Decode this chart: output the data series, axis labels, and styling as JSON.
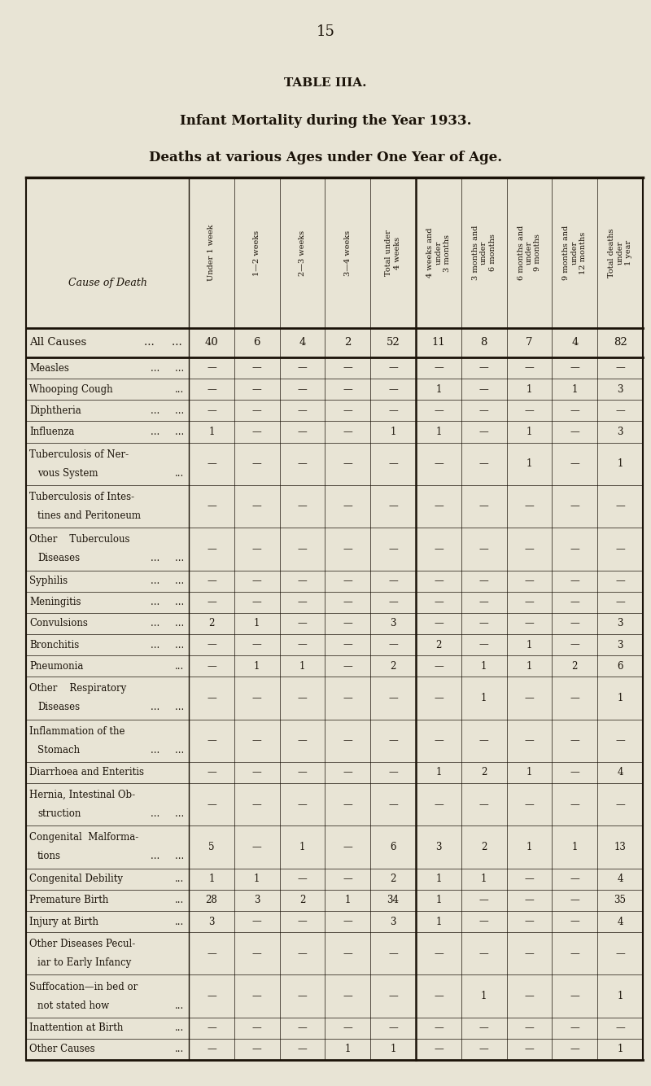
{
  "page_number": "15",
  "table_title": "TABLE IIIA.",
  "subtitle1": "Infant Mortality during the Year 1933.",
  "subtitle2": "Deaths at various Ages under One Year of Age.",
  "col_headers": [
    "Under 1 week",
    "1—2 weeks",
    "2—3 weeks",
    "3—4 weeks",
    "Total under\n4 weeks",
    "4 weeks and\nunder\n3 months",
    "3 months and\nunder\n6 months",
    "6 months and\nunder\n9 months",
    "9 months and\nunder\n12 months",
    "Total deaths\nunder\n1 year"
  ],
  "rows": [
    {
      "label": "All Causes",
      "suffix": "...     ...",
      "values": [
        "40",
        "6",
        "4",
        "2",
        "52",
        "11",
        "8",
        "7",
        "4",
        "82"
      ],
      "bold": true,
      "two_line": false
    },
    {
      "label": "Measles",
      "suffix": "...     ...",
      "values": [
        "—",
        "—",
        "—",
        "—",
        "—",
        "—",
        "—",
        "—",
        "—",
        "—"
      ],
      "bold": false,
      "two_line": false
    },
    {
      "label": "Whooping Cough",
      "suffix": "...",
      "values": [
        "—",
        "—",
        "—",
        "—",
        "—",
        "1",
        "—",
        "1",
        "1",
        "3"
      ],
      "bold": false,
      "two_line": false
    },
    {
      "label": "Diphtheria",
      "suffix": "...     ...",
      "values": [
        "—",
        "—",
        "—",
        "—",
        "—",
        "—",
        "—",
        "—",
        "—",
        "—"
      ],
      "bold": false,
      "two_line": false
    },
    {
      "label": "Influenza",
      "suffix": "...     ...",
      "values": [
        "1",
        "—",
        "—",
        "—",
        "1",
        "1",
        "—",
        "1",
        "—",
        "3"
      ],
      "bold": false,
      "two_line": false
    },
    {
      "label": "Tuberculosis of Ner-",
      "label2": "vous System",
      "suffix": "...",
      "values": [
        "—",
        "—",
        "—",
        "—",
        "—",
        "—",
        "—",
        "1",
        "—",
        "1"
      ],
      "bold": false,
      "two_line": true
    },
    {
      "label": "Tuberculosis of Intes-",
      "label2": "tines and Peritoneum",
      "suffix": "",
      "values": [
        "—",
        "—",
        "—",
        "—",
        "—",
        "—",
        "—",
        "—",
        "—",
        "—"
      ],
      "bold": false,
      "two_line": true
    },
    {
      "label": "Other    Tuberculous",
      "label2": "Diseases",
      "suffix": "...     ...",
      "values": [
        "—",
        "—",
        "—",
        "—",
        "—",
        "—",
        "—",
        "—",
        "—",
        "—"
      ],
      "bold": false,
      "two_line": true
    },
    {
      "label": "Syphilis",
      "suffix": "...     ...",
      "values": [
        "—",
        "—",
        "—",
        "—",
        "—",
        "—",
        "—",
        "—",
        "—",
        "—"
      ],
      "bold": false,
      "two_line": false
    },
    {
      "label": "Meningitis",
      "suffix": "...     ...",
      "values": [
        "—",
        "—",
        "—",
        "—",
        "—",
        "—",
        "—",
        "—",
        "—",
        "—"
      ],
      "bold": false,
      "two_line": false
    },
    {
      "label": "Convulsions",
      "suffix": "...     ...",
      "values": [
        "2",
        "1",
        "—",
        "—",
        "3",
        "—",
        "—",
        "—",
        "—",
        "3"
      ],
      "bold": false,
      "two_line": false
    },
    {
      "label": "Bronchitis",
      "suffix": "...     ...",
      "values": [
        "—",
        "—",
        "—",
        "—",
        "—",
        "2",
        "—",
        "1",
        "—",
        "3"
      ],
      "bold": false,
      "two_line": false
    },
    {
      "label": "Pneumonia",
      "suffix": "...",
      "values": [
        "—",
        "1",
        "1",
        "—",
        "2",
        "—",
        "1",
        "1",
        "2",
        "6"
      ],
      "bold": false,
      "two_line": false
    },
    {
      "label": "Other    Respiratory",
      "label2": "Diseases",
      "suffix": "...     ...",
      "values": [
        "—",
        "—",
        "—",
        "—",
        "—",
        "—",
        "1",
        "—",
        "—",
        "1"
      ],
      "bold": false,
      "two_line": true
    },
    {
      "label": "Inflammation of the",
      "label2": "Stomach",
      "suffix": "...     ...",
      "values": [
        "—",
        "—",
        "—",
        "—",
        "—",
        "—",
        "—",
        "—",
        "—",
        "—"
      ],
      "bold": false,
      "two_line": true
    },
    {
      "label": "Diarrhoea and Enteritis",
      "suffix": "",
      "values": [
        "—",
        "—",
        "—",
        "—",
        "—",
        "1",
        "2",
        "1",
        "—",
        "4"
      ],
      "bold": false,
      "two_line": false
    },
    {
      "label": "Hernia, Intestinal Ob-",
      "label2": "struction",
      "suffix": "...     ...",
      "values": [
        "—",
        "—",
        "—",
        "—",
        "—",
        "—",
        "—",
        "—",
        "—",
        "—"
      ],
      "bold": false,
      "two_line": true
    },
    {
      "label": "Congenital  Malforma-",
      "label2": "tions",
      "suffix": "...     ...",
      "values": [
        "5",
        "—",
        "1",
        "—",
        "6",
        "3",
        "2",
        "1",
        "1",
        "13"
      ],
      "bold": false,
      "two_line": true
    },
    {
      "label": "Congenital Debility",
      "suffix": "...",
      "values": [
        "1",
        "1",
        "—",
        "—",
        "2",
        "1",
        "1",
        "—",
        "—",
        "4"
      ],
      "bold": false,
      "two_line": false
    },
    {
      "label": "Premature Birth",
      "suffix": "...",
      "values": [
        "28",
        "3",
        "2",
        "1",
        "34",
        "1",
        "—",
        "—",
        "—",
        "35"
      ],
      "bold": false,
      "two_line": false
    },
    {
      "label": "Injury at Birth",
      "suffix": "...",
      "values": [
        "3",
        "—",
        "—",
        "—",
        "3",
        "1",
        "—",
        "—",
        "—",
        "4"
      ],
      "bold": false,
      "two_line": false
    },
    {
      "label": "Other Diseases Pecul-",
      "label2": "iar to Early Infancy",
      "suffix": "",
      "values": [
        "—",
        "—",
        "—",
        "—",
        "—",
        "—",
        "—",
        "—",
        "—",
        "—"
      ],
      "bold": false,
      "two_line": true
    },
    {
      "label": "Suffocation—in bed or",
      "label2": "not stated how",
      "suffix": "...",
      "values": [
        "—",
        "—",
        "—",
        "—",
        "—",
        "—",
        "1",
        "—",
        "—",
        "1"
      ],
      "bold": false,
      "two_line": true
    },
    {
      "label": "Inattention at Birth",
      "suffix": "...",
      "values": [
        "—",
        "—",
        "—",
        "—",
        "—",
        "—",
        "—",
        "—",
        "—",
        "—"
      ],
      "bold": false,
      "two_line": false
    },
    {
      "label": "Other Causes",
      "suffix": "...",
      "values": [
        "—",
        "—",
        "—",
        "1",
        "1",
        "—",
        "—",
        "—",
        "—",
        "1"
      ],
      "bold": false,
      "two_line": false
    }
  ],
  "bg_color": "#e8e4d5",
  "text_color": "#1a1208",
  "line_color": "#1a1208"
}
